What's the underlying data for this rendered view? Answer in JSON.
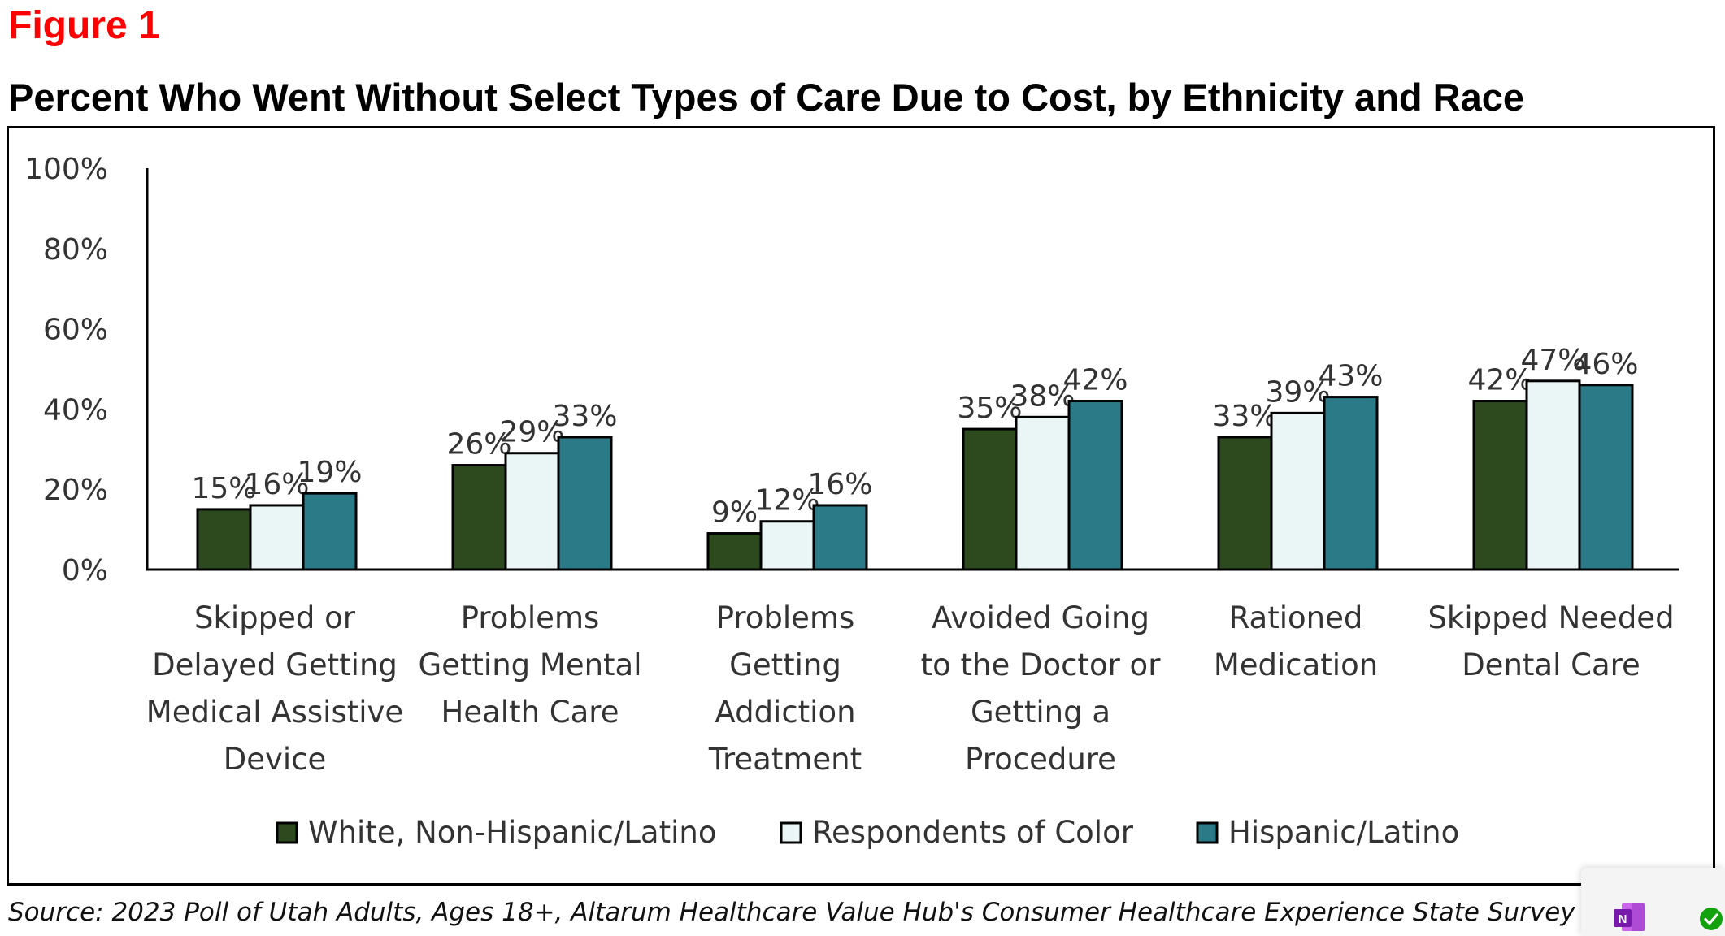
{
  "figure_label": "Figure 1",
  "source": "Source: 2023 Poll of Utah Adults, Ages 18+, Altarum Healthcare Value Hub's Consumer Healthcare Experience State Survey",
  "chart_data": {
    "type": "bar",
    "title": "Percent Who Went Without Select Types of Care Due to Cost, by Ethnicity and Race",
    "xlabel": "",
    "ylabel": "",
    "ylim": [
      0,
      100
    ],
    "yticks": [
      0,
      20,
      40,
      60,
      80,
      100
    ],
    "ytick_labels": [
      "0%",
      "20%",
      "40%",
      "60%",
      "80%",
      "100%"
    ],
    "grid": false,
    "legend_position": "bottom",
    "categories": [
      [
        "Skipped or",
        "Delayed Getting",
        "Medical Assistive",
        "Device"
      ],
      [
        "Problems",
        "Getting Mental",
        "Health Care"
      ],
      [
        "Problems",
        "Getting",
        "Addiction",
        "Treatment"
      ],
      [
        "Avoided Going",
        "to the Doctor or",
        "Getting a",
        "Procedure"
      ],
      [
        "Rationed",
        "Medication"
      ],
      [
        "Skipped Needed",
        "Dental Care"
      ]
    ],
    "series": [
      {
        "name": "White, Non-Hispanic/Latino",
        "color": "#2d4a1f",
        "values": [
          15,
          26,
          9,
          35,
          33,
          42
        ],
        "labels": [
          "15%",
          "26%",
          "9%",
          "35%",
          "33%",
          "42%"
        ]
      },
      {
        "name": "Respondents of Color",
        "color": "#eaf6f6",
        "values": [
          16,
          29,
          12,
          38,
          39,
          47
        ],
        "labels": [
          "16%",
          "29%",
          "12%",
          "38%",
          "39%",
          "47%"
        ]
      },
      {
        "name": "Hispanic/Latino",
        "color": "#2a7b87",
        "values": [
          19,
          33,
          16,
          42,
          43,
          46
        ],
        "labels": [
          "19%",
          "33%",
          "16%",
          "42%",
          "43%",
          "46%"
        ]
      }
    ]
  },
  "tray": {
    "onenote_icon": "onenote-icon",
    "onenote_letter": "N",
    "check_icon": "check-circle-icon",
    "accent_colors": {
      "onenote": "#7719aa",
      "check": "#13a10e"
    }
  }
}
